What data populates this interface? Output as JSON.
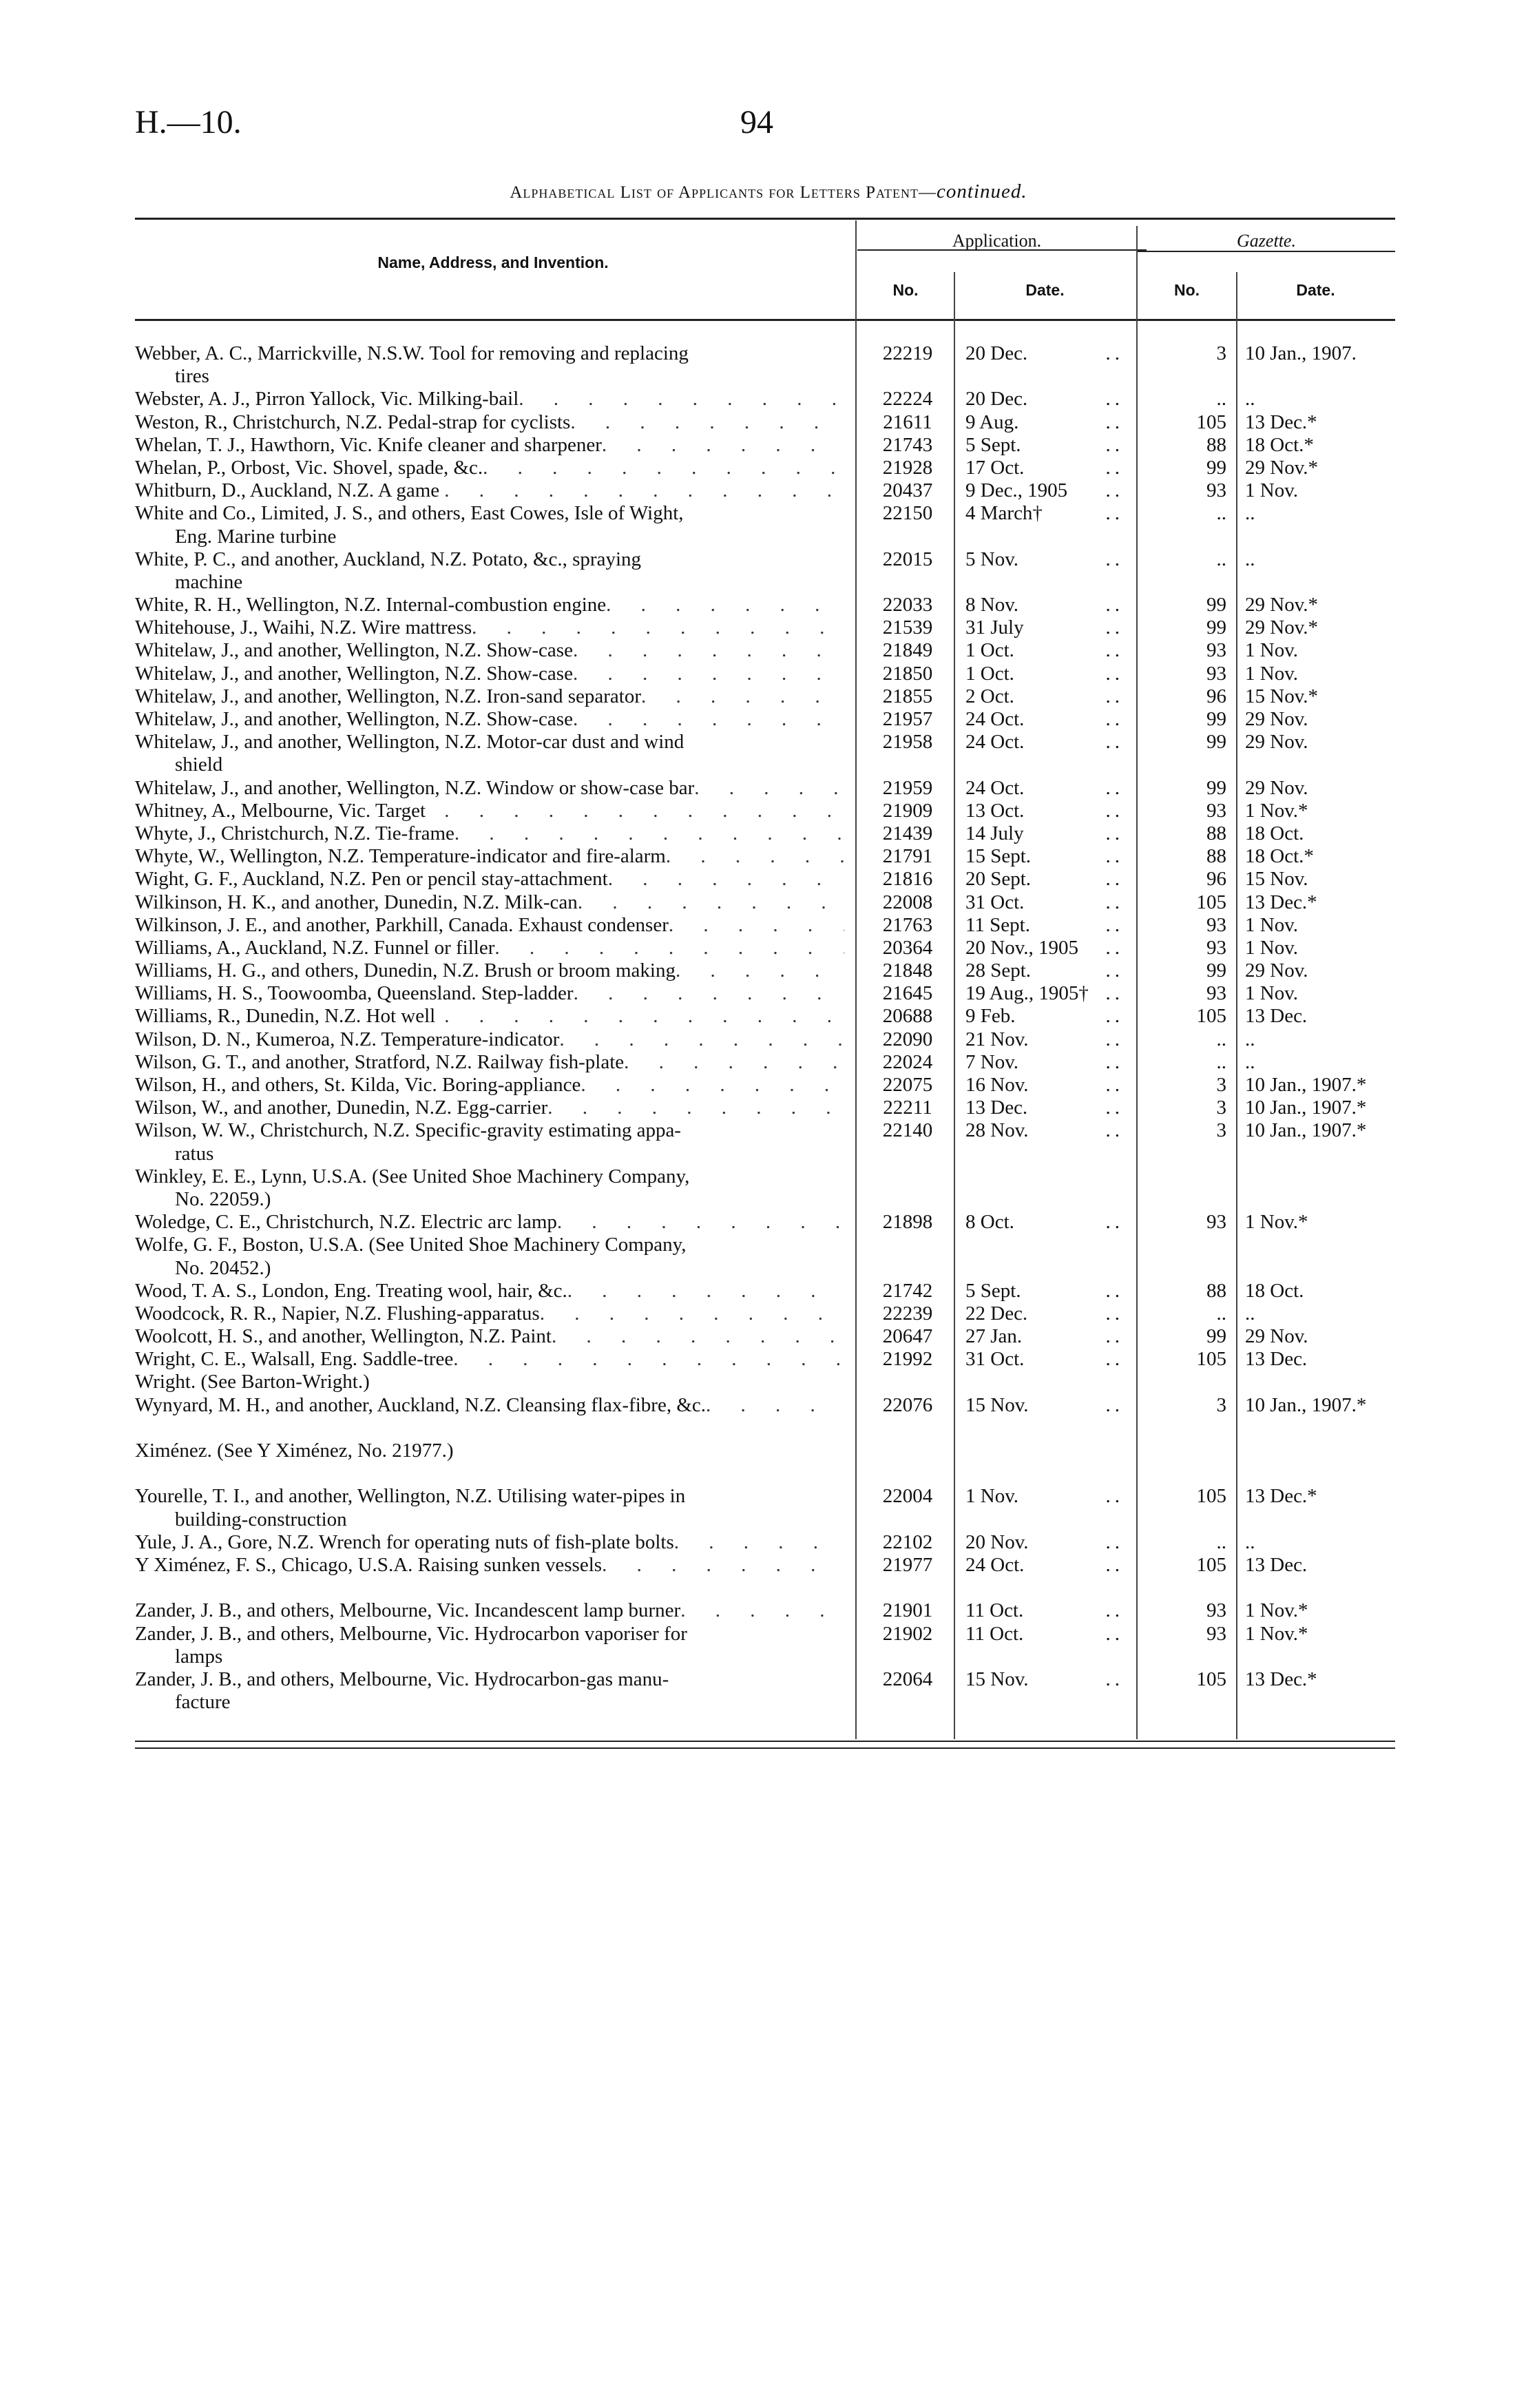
{
  "header": {
    "code": "H.—10.",
    "page_number": "94",
    "title": "Alphabetical List of Applicants for Letters Patent—",
    "title_suffix": "continued."
  },
  "columns": {
    "name": "Name, Address, and Invention.",
    "application": "Application.",
    "gazette": "Gazette.",
    "no": "No.",
    "date": "Date."
  },
  "rows": [
    {
      "name": "Webber, A. C., Marrickville, N.S.W.   Tool for removing and replacing",
      "cont": "tires",
      "no": "22219",
      "date": "20 Dec.",
      "gno": "3",
      "gdate": "10 Jan., 1907."
    },
    {
      "name": "Webster, A. J., Pirron Yallock, Vic.   Milking-bail",
      "no": "22224",
      "date": "20 Dec.",
      "gno": "..",
      "gdate": ".."
    },
    {
      "name": "Weston, R., Christchurch, N.Z.   Pedal-strap for cyclists",
      "no": "21611",
      "date": "9 Aug.",
      "gno": "105",
      "gdate": "13 Dec.*"
    },
    {
      "name": "Whelan, T. J., Hawthorn, Vic.   Knife cleaner and sharpener",
      "no": "21743",
      "date": "5 Sept.",
      "gno": "88",
      "gdate": "18 Oct.*"
    },
    {
      "name": "Whelan, P., Orbost, Vic.   Shovel, spade, &c.",
      "no": "21928",
      "date": "17 Oct.",
      "gno": "99",
      "gdate": "29 Nov.*"
    },
    {
      "name": "Whitburn, D., Auckland, N.Z.   A game",
      "no": "20437",
      "date": "9 Dec., 1905",
      "gno": "93",
      "gdate": "1 Nov."
    },
    {
      "name": "White and Co., Limited, J. S., and others, East Cowes, Isle of Wight,",
      "cont": "Eng.   Marine turbine",
      "no": "22150",
      "date": "4 March†",
      "gno": "..",
      "gdate": ".."
    },
    {
      "name": "White, P. C., and another, Auckland, N.Z.   Potato, &c., spraying",
      "cont": "machine",
      "no": "22015",
      "date": "5 Nov.",
      "gno": "..",
      "gdate": ".."
    },
    {
      "name": "White, R. H., Wellington, N.Z.   Internal-combustion engine",
      "no": "22033",
      "date": "8 Nov.",
      "gno": "99",
      "gdate": "29 Nov.*"
    },
    {
      "name": "Whitehouse, J., Waihi, N.Z.   Wire mattress",
      "no": "21539",
      "date": "31 July",
      "gno": "99",
      "gdate": "29 Nov.*"
    },
    {
      "name": "Whitelaw, J., and another, Wellington, N.Z.   Show-case",
      "no": "21849",
      "date": "1 Oct.",
      "gno": "93",
      "gdate": "1 Nov."
    },
    {
      "name": "Whitelaw, J., and another, Wellington, N.Z.   Show-case",
      "no": "21850",
      "date": "1 Oct.",
      "gno": "93",
      "gdate": "1 Nov."
    },
    {
      "name": "Whitelaw, J., and another, Wellington, N.Z.   Iron-sand separator",
      "no": "21855",
      "date": "2 Oct.",
      "gno": "96",
      "gdate": "15 Nov.*"
    },
    {
      "name": "Whitelaw, J., and another, Wellington, N.Z.   Show-case",
      "no": "21957",
      "date": "24 Oct.",
      "gno": "99",
      "gdate": "29 Nov."
    },
    {
      "name": "Whitelaw, J., and another, Wellington, N.Z.   Motor-car dust and wind",
      "cont": "shield",
      "no": "21958",
      "date": "24 Oct.",
      "gno": "99",
      "gdate": "29 Nov."
    },
    {
      "name": "Whitelaw, J., and another, Wellington, N.Z.   Window or show-case bar",
      "no": "21959",
      "date": "24 Oct.",
      "gno": "99",
      "gdate": "29 Nov."
    },
    {
      "name": "Whitney, A., Melbourne, Vic.   Target",
      "no": "21909",
      "date": "13 Oct.",
      "gno": "93",
      "gdate": "1 Nov.*"
    },
    {
      "name": "Whyte, J., Christchurch, N.Z.   Tie-frame",
      "no": "21439",
      "date": "14 July",
      "gno": "88",
      "gdate": "18 Oct."
    },
    {
      "name": "Whyte, W., Wellington, N.Z.   Temperature-indicator and fire-alarm",
      "no": "21791",
      "date": "15 Sept.",
      "gno": "88",
      "gdate": "18 Oct.*"
    },
    {
      "name": "Wight, G. F., Auckland, N.Z.   Pen or pencil stay-attachment",
      "no": "21816",
      "date": "20 Sept.",
      "gno": "96",
      "gdate": "15 Nov."
    },
    {
      "name": "Wilkinson, H. K., and another, Dunedin, N.Z.   Milk-can",
      "no": "22008",
      "date": "31 Oct.",
      "gno": "105",
      "gdate": "13 Dec.*"
    },
    {
      "name": "Wilkinson, J. E., and another, Parkhill, Canada.   Exhaust condenser",
      "no": "21763",
      "date": "11 Sept.",
      "gno": "93",
      "gdate": "1 Nov."
    },
    {
      "name": "Williams, A., Auckland, N.Z.   Funnel or filler",
      "no": "20364",
      "date": "20 Nov., 1905",
      "gno": "93",
      "gdate": "1 Nov."
    },
    {
      "name": "Williams, H. G., and others, Dunedin, N.Z.   Brush or broom making",
      "no": "21848",
      "date": "28 Sept.",
      "gno": "99",
      "gdate": "29 Nov."
    },
    {
      "name": "Williams, H. S., Toowoomba, Queensland.   Step-ladder",
      "no": "21645",
      "date": "19 Aug., 1905†",
      "gno": "93",
      "gdate": "1 Nov."
    },
    {
      "name": "Williams, R., Dunedin, N.Z.   Hot well",
      "no": "20688",
      "date": "9 Feb.",
      "gno": "105",
      "gdate": "13 Dec."
    },
    {
      "name": "Wilson, D. N., Kumeroa, N.Z.   Temperature-indicator",
      "no": "22090",
      "date": "21 Nov.",
      "gno": "..",
      "gdate": ".."
    },
    {
      "name": "Wilson, G. T., and another, Stratford, N.Z.   Railway fish-plate",
      "no": "22024",
      "date": "7 Nov.",
      "gno": "..",
      "gdate": ".."
    },
    {
      "name": "Wilson, H., and others, St. Kilda, Vic.   Boring-appliance",
      "no": "22075",
      "date": "16 Nov.",
      "gno": "3",
      "gdate": "10 Jan., 1907.*"
    },
    {
      "name": "Wilson, W., and another, Dunedin, N.Z.   Egg-carrier",
      "no": "22211",
      "date": "13 Dec.",
      "gno": "3",
      "gdate": "10 Jan., 1907.*"
    },
    {
      "name": "Wilson, W. W., Christchurch, N.Z.   Specific-gravity estimating appa-",
      "cont": "ratus",
      "no": "22140",
      "date": "28 Nov.",
      "gno": "3",
      "gdate": "10 Jan., 1907.*"
    },
    {
      "name": "Winkley, E. E., Lynn, U.S.A.   (See United Shoe Machinery Company,",
      "cont": "No. 22059.)"
    },
    {
      "name": "Woledge, C. E., Christchurch, N.Z.   Electric arc lamp",
      "no": "21898",
      "date": "8 Oct.",
      "gno": "93",
      "gdate": "1 Nov.*"
    },
    {
      "name": "Wolfe, G. F., Boston, U.S.A.   (See United Shoe Machinery Company,",
      "cont": "No. 20452.)"
    },
    {
      "name": "Wood, T. A. S., London, Eng.   Treating wool, hair, &c.",
      "no": "21742",
      "date": "5 Sept.",
      "gno": "88",
      "gdate": "18 Oct."
    },
    {
      "name": "Woodcock, R. R., Napier, N.Z.   Flushing-apparatus",
      "no": "22239",
      "date": "22 Dec.",
      "gno": "..",
      "gdate": ".."
    },
    {
      "name": "Woolcott, H. S., and another, Wellington, N.Z.   Paint",
      "no": "20647",
      "date": "27 Jan.",
      "gno": "99",
      "gdate": "29 Nov."
    },
    {
      "name": "Wright, C. E., Walsall, Eng.   Saddle-tree",
      "no": "21992",
      "date": "31 Oct.",
      "gno": "105",
      "gdate": "13 Dec."
    },
    {
      "name": "Wright.   (See Barton-Wright.)"
    },
    {
      "name": "Wynyard, M. H., and another, Auckland, N.Z.   Cleansing flax-fibre, &c.",
      "no": "22076",
      "date": "15 Nov.",
      "gno": "3",
      "gdate": "10 Jan., 1907.*"
    },
    {
      "spacer": true
    },
    {
      "name": "Ximénez.   (See Y Ximénez, No. 21977.)"
    },
    {
      "spacer": true
    },
    {
      "name": "Yourelle, T. I., and another, Wellington, N.Z.   Utilising water-pipes in",
      "cont": "building-construction",
      "no": "22004",
      "date": "1 Nov.",
      "gno": "105",
      "gdate": "13 Dec.*"
    },
    {
      "name": "Yule, J. A., Gore, N.Z.   Wrench for operating nuts of fish-plate bolts",
      "no": "22102",
      "date": "20 Nov.",
      "gno": "..",
      "gdate": ".."
    },
    {
      "name": "Y Ximénez, F. S., Chicago, U.S.A.   Raising sunken vessels",
      "no": "21977",
      "date": "24 Oct.",
      "gno": "105",
      "gdate": "13 Dec."
    },
    {
      "spacer": true
    },
    {
      "name": "Zander, J. B., and others, Melbourne, Vic.   Incandescent lamp burner",
      "no": "21901",
      "date": "11 Oct.",
      "gno": "93",
      "gdate": "1 Nov.*"
    },
    {
      "name": "Zander, J. B., and others, Melbourne, Vic.   Hydrocarbon vaporiser for",
      "cont": "lamps",
      "no": "21902",
      "date": "11 Oct.",
      "gno": "93",
      "gdate": "1 Nov.*"
    },
    {
      "name": "Zander, J. B., and others, Melbourne, Vic.   Hydrocarbon-gas manu-",
      "cont": "facture",
      "no": "22064",
      "date": "15 Nov.",
      "gno": "105",
      "gdate": "13 Dec.*"
    }
  ]
}
